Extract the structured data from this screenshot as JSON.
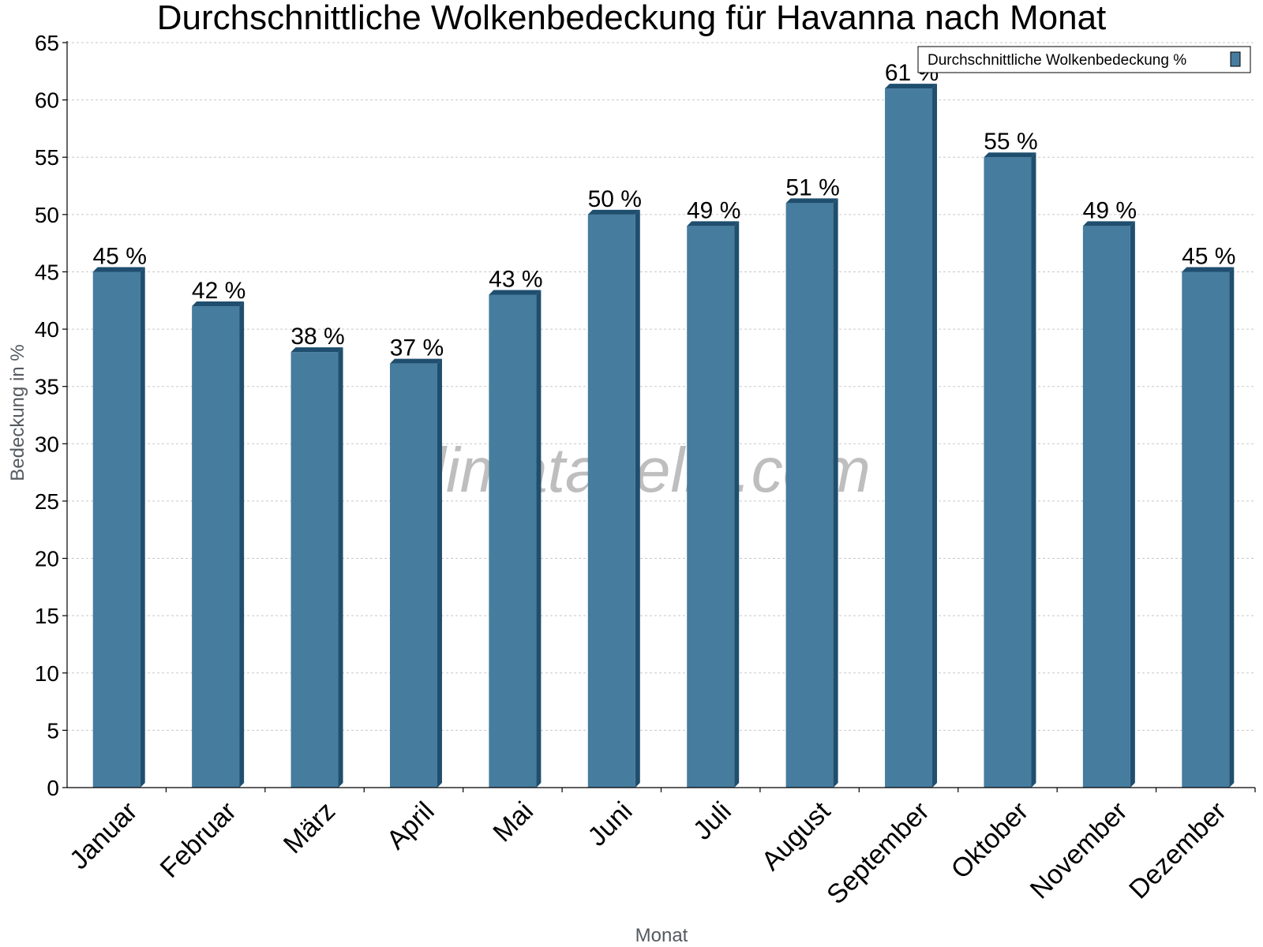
{
  "chart_data": {
    "type": "bar",
    "title": "Durchschnittliche Wolkenbedeckung für Havanna nach Monat",
    "xlabel": "Monat",
    "ylabel": "Bedeckung in %",
    "ylim": [
      0,
      65
    ],
    "yticks": [
      0,
      5,
      10,
      15,
      20,
      25,
      30,
      35,
      40,
      45,
      50,
      55,
      60,
      65
    ],
    "categories": [
      "Januar",
      "Februar",
      "März",
      "April",
      "Mai",
      "Juni",
      "Juli",
      "August",
      "September",
      "Oktober",
      "November",
      "Dezember"
    ],
    "series": [
      {
        "name": "Durchschnittliche Wolkenbedeckung %",
        "values": [
          45,
          42,
          38,
          37,
          43,
          50,
          49,
          51,
          61,
          55,
          49,
          45
        ],
        "labels": [
          "45 %",
          "42 %",
          "38 %",
          "37 %",
          "43 %",
          "50 %",
          "49 %",
          "51 %",
          "61 %",
          "55 %",
          "49 %",
          "45 %"
        ],
        "color": "#467c9e",
        "side_color": "#1f4e6e"
      }
    ],
    "legend": "top-right",
    "grid": true
  },
  "watermark": "klimatabelle.com"
}
